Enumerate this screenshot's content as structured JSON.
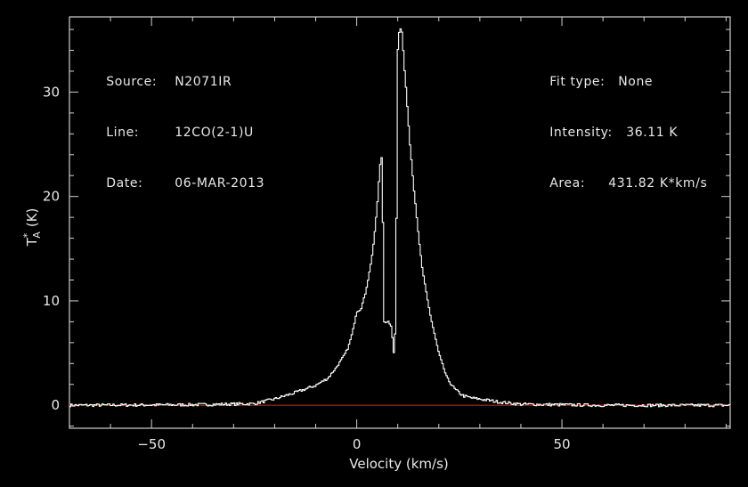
{
  "header": {
    "left": [
      {
        "key": "Source:",
        "value": "N2071IR"
      },
      {
        "key": "Line:",
        "value": "12CO(2-1)U"
      },
      {
        "key": "Date:",
        "value": "06-MAR-2013"
      }
    ],
    "right": [
      {
        "key": "Fit type:",
        "value": "None"
      },
      {
        "key": "Intensity:",
        "value": "36.11 K"
      },
      {
        "key": "Area:",
        "value": "431.82 K*km/s"
      }
    ]
  },
  "colors": {
    "background": "#000000",
    "spectrum": "#ffffff",
    "baseline": "#d01818",
    "axis": "#d0d0d0"
  },
  "chart_data": {
    "type": "line",
    "xlabel": "Velocity (km/s)",
    "ylabel_main": "T",
    "ylabel_sup": "*",
    "ylabel_sub": "A",
    "ylabel_unit": "(K)",
    "xlim": [
      -70,
      91
    ],
    "ylim": [
      -2.2,
      37.2
    ],
    "x_ticks": [
      -50,
      0,
      50
    ],
    "x_tick_labels": [
      "−50",
      "0",
      "50"
    ],
    "y_ticks": [
      0,
      10,
      20,
      30
    ],
    "y_tick_labels": [
      "0",
      "10",
      "20",
      "30"
    ],
    "baseline_value": 0,
    "series": [
      {
        "x": [
          -70,
          -40,
          -25,
          -20,
          -15,
          -10,
          -7,
          -5,
          -3,
          -2,
          -1,
          0,
          1,
          2,
          3,
          4,
          5,
          5.5,
          6,
          6.3,
          6.6,
          7,
          7.5,
          8,
          8.5,
          9,
          9.3,
          9.6,
          10,
          10.4,
          10.8,
          11.1,
          11.4,
          12,
          13,
          14,
          15,
          16,
          18,
          20,
          22,
          24,
          26,
          28,
          30,
          35,
          40,
          50,
          60,
          91
        ],
        "y": [
          0,
          0.05,
          0.15,
          0.6,
          1.2,
          1.9,
          2.6,
          3.6,
          4.8,
          5.6,
          7.0,
          9.0,
          9.2,
          10.5,
          12.5,
          15.0,
          19.0,
          22.0,
          24.3,
          22.0,
          8.0,
          7.8,
          8.1,
          7.8,
          7.6,
          5.0,
          5.2,
          13.0,
          34.0,
          35.9,
          36.11,
          35.6,
          33.5,
          30.5,
          25.0,
          20.5,
          16.5,
          13.0,
          8.5,
          5.0,
          2.6,
          1.5,
          0.9,
          0.7,
          0.6,
          0.3,
          0.1,
          0.05,
          0,
          0
        ]
      }
    ]
  }
}
